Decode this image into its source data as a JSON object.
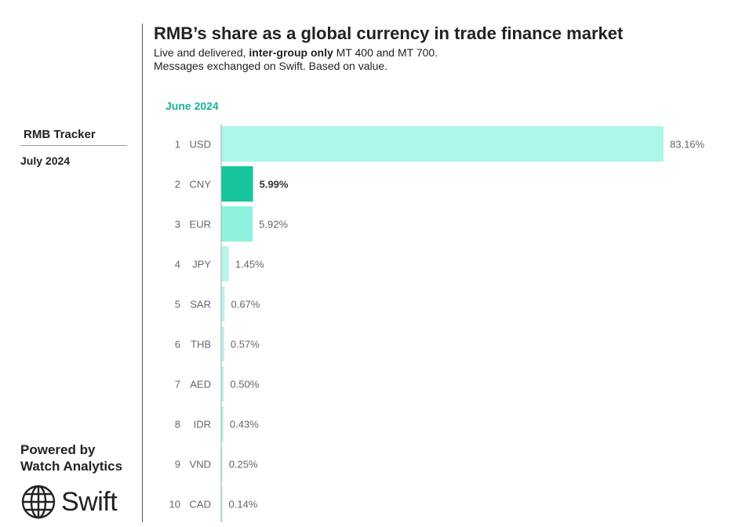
{
  "header": {
    "title": "RMB’s share as a global currency in trade finance market",
    "subtitle_pre": "Live and delivered, ",
    "subtitle_bold": "inter-group only",
    "subtitle_post": " MT 400 and MT 700.",
    "subtitle_line2": "Messages exchanged on Swift. Based on value."
  },
  "sidebar": {
    "tracker_title": "RMB Tracker",
    "tracker_date": "July 2024",
    "powered_line1": "Powered by",
    "powered_line2": "Watch Analytics",
    "logo_text": "Swift",
    "logo_icon": "globe-icon"
  },
  "chart_data": {
    "type": "bar",
    "orientation": "horizontal",
    "period_label": "June 2024",
    "highlight": "CNY",
    "ranks": [
      "1",
      "2",
      "3",
      "4",
      "5",
      "6",
      "7",
      "8",
      "9",
      "10"
    ],
    "categories": [
      "USD",
      "CNY",
      "EUR",
      "JPY",
      "SAR",
      "THB",
      "AED",
      "IDR",
      "VND",
      "CAD"
    ],
    "values": [
      83.16,
      5.99,
      5.92,
      1.45,
      0.67,
      0.57,
      0.5,
      0.43,
      0.25,
      0.14
    ],
    "value_labels": [
      "83.16%",
      "5.99%",
      "5.92%",
      "1.45%",
      "0.67%",
      "0.57%",
      "0.50%",
      "0.43%",
      "0.25%",
      "0.14%"
    ],
    "unit": "%",
    "colors": {
      "USD": "#aaf6e9",
      "CNY": "#16c59c",
      "EUR": "#8ff2dc",
      "other": "#b8f6ea"
    }
  }
}
